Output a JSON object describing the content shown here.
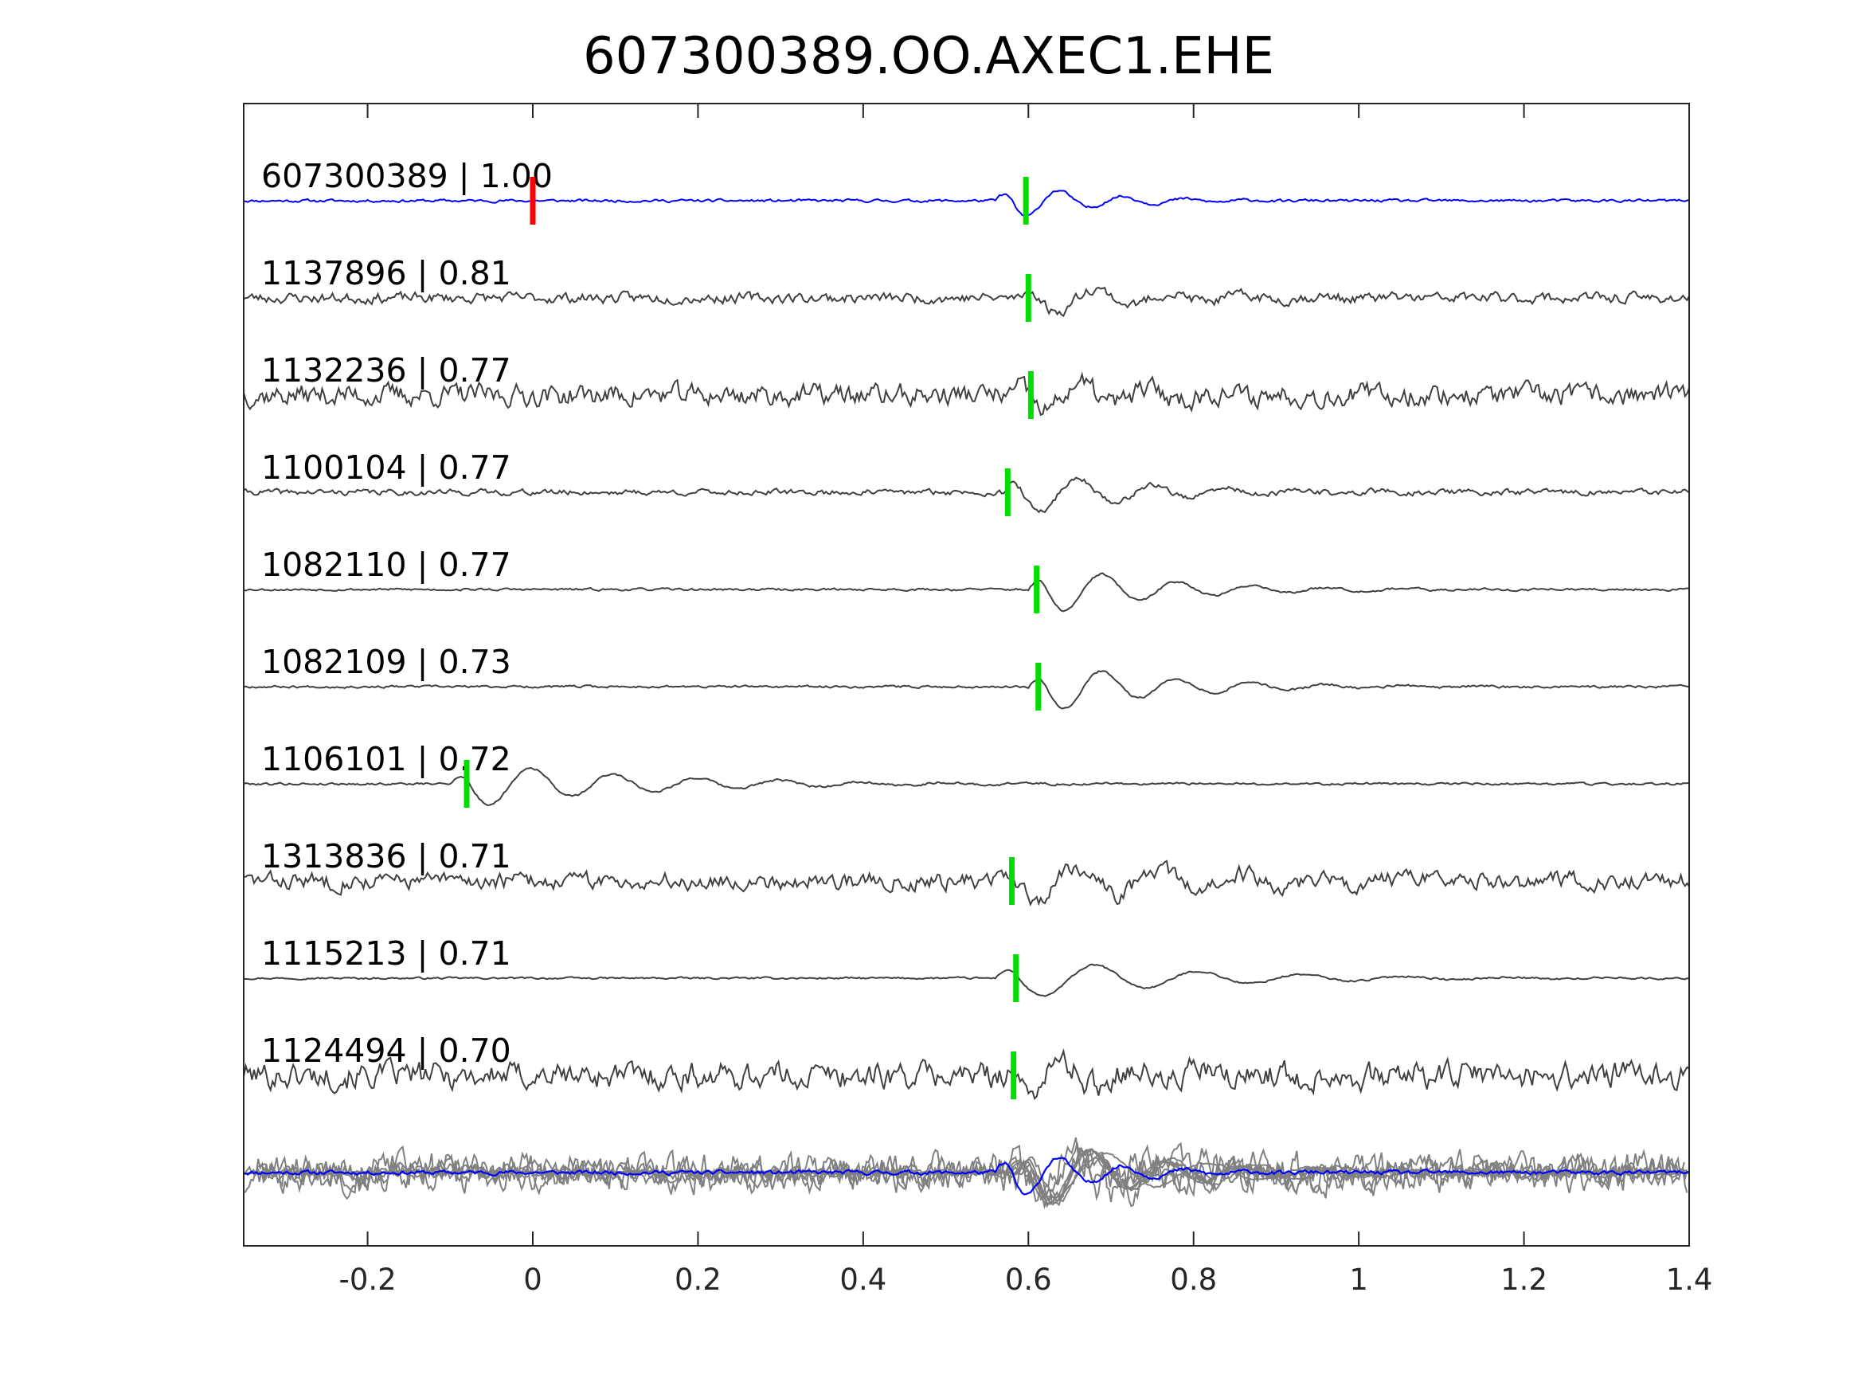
{
  "chart_data": {
    "type": "line",
    "title": "607300389.OO.AXEC1.EHE",
    "xlabel": "",
    "ylabel": "",
    "xlim": [
      -0.35,
      1.4
    ],
    "x_ticks": [
      -0.2,
      0,
      0.2,
      0.4,
      0.6,
      0.8,
      1,
      1.2,
      1.4
    ],
    "x_tick_labels": [
      "-0.2",
      "0",
      "0.2",
      "0.4",
      "0.6",
      "0.8",
      "1",
      "1.2",
      "1.4"
    ],
    "grid": false,
    "colors": {
      "template": "#0000ff",
      "trace": "#404040",
      "stack": "#808080",
      "reference_pick": "#ff0000",
      "aligned_pick": "#00dd00",
      "axes": "#262626"
    },
    "traces": [
      {
        "id": "607300389",
        "cc": "1.00",
        "label": "607300389 | 1.00",
        "pick_time": 0.597,
        "ref_pick_time": 0.0,
        "noise": 0.06,
        "onset": 0.56,
        "amp": 1.0,
        "freq": 13,
        "decay": 11,
        "seed": 11,
        "color": "template"
      },
      {
        "id": "1137896",
        "cc": "0.81",
        "label": "1137896 | 0.81",
        "pick_time": 0.6,
        "noise": 0.22,
        "onset": 0.59,
        "amp": 0.85,
        "freq": 11,
        "decay": 8,
        "seed": 23,
        "color": "trace"
      },
      {
        "id": "1132236",
        "cc": "0.77",
        "label": "1132236 | 0.77",
        "pick_time": 0.603,
        "noise": 0.45,
        "onset": 0.58,
        "amp": 0.9,
        "freq": 12,
        "decay": 8,
        "seed": 37,
        "color": "trace"
      },
      {
        "id": "1100104",
        "cc": "0.77",
        "label": "1100104 | 0.77",
        "pick_time": 0.575,
        "noise": 0.12,
        "onset": 0.57,
        "amp": 1.1,
        "freq": 11,
        "decay": 7,
        "seed": 41,
        "color": "trace"
      },
      {
        "id": "1082110",
        "cc": "0.77",
        "label": "1082110 | 0.77",
        "pick_time": 0.61,
        "noise": 0.05,
        "onset": 0.6,
        "amp": 1.2,
        "freq": 11,
        "decay": 7,
        "seed": 53,
        "color": "trace"
      },
      {
        "id": "1082109",
        "cc": "0.73",
        "label": "1082109 | 0.73",
        "pick_time": 0.612,
        "noise": 0.05,
        "onset": 0.6,
        "amp": 1.2,
        "freq": 11,
        "decay": 7,
        "seed": 67,
        "color": "trace"
      },
      {
        "id": "1106101",
        "cc": "0.72",
        "label": "1106101 | 0.72",
        "pick_time": -0.08,
        "noise": 0.05,
        "onset": -0.1,
        "amp": 1.1,
        "freq": 10,
        "decay": 5,
        "seed": 79,
        "color": "trace"
      },
      {
        "id": "1313836",
        "cc": "0.71",
        "label": "1313836 | 0.71",
        "pick_time": 0.58,
        "noise": 0.35,
        "onset": 0.56,
        "amp": 1.0,
        "freq": 10,
        "decay": 4,
        "seed": 83,
        "color": "trace"
      },
      {
        "id": "1115213",
        "cc": "0.71",
        "label": "1115213 | 0.71",
        "pick_time": 0.585,
        "noise": 0.04,
        "onset": 0.56,
        "amp": 1.0,
        "freq": 8,
        "decay": 5,
        "seed": 97,
        "color": "trace"
      },
      {
        "id": "1124494",
        "cc": "0.70",
        "label": "1124494 | 0.70",
        "pick_time": 0.582,
        "noise": 0.55,
        "onset": 0.56,
        "amp": 0.8,
        "freq": 12,
        "decay": 5,
        "seed": 101,
        "color": "trace"
      }
    ],
    "stack": {
      "template_index": 0
    }
  }
}
